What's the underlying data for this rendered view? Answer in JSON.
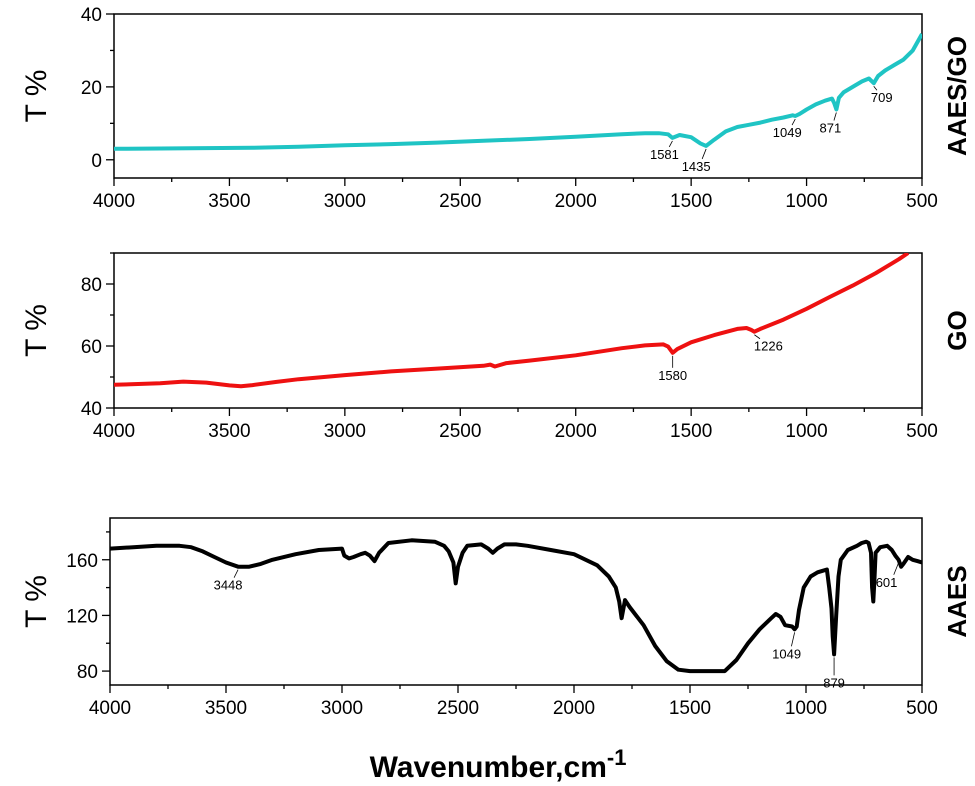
{
  "figure": {
    "xlabel": "Wavenumber,cm",
    "xlabel_sup": "-1"
  },
  "chart_data": [
    {
      "type": "line",
      "side_label": "AAES/GO",
      "ylabel": "T %",
      "color": "#1fc4c4",
      "xlim": [
        4000,
        500
      ],
      "ylim": [
        -5,
        40
      ],
      "x_ticks": [
        "4000",
        "3500",
        "3000",
        "2500",
        "2000",
        "1500",
        "1000",
        "500"
      ],
      "y_ticks": [
        "0",
        "20",
        "40"
      ],
      "series": [
        {
          "x": [
            4000,
            3800,
            3600,
            3400,
            3200,
            3000,
            2800,
            2600,
            2400,
            2200,
            2000,
            1800,
            1700,
            1640,
            1600,
            1581,
            1550,
            1500,
            1460,
            1435,
            1400,
            1350,
            1300,
            1250,
            1200,
            1150,
            1100,
            1060,
            1049,
            1030,
            1000,
            960,
            920,
            890,
            880,
            871,
            860,
            840,
            800,
            760,
            730,
            709,
            690,
            660,
            620,
            580,
            540,
            500
          ],
          "y": [
            3,
            3.1,
            3.2,
            3.3,
            3.6,
            4,
            4.3,
            4.7,
            5.2,
            5.7,
            6.3,
            7,
            7.3,
            7.3,
            7,
            6,
            6.8,
            6.2,
            4.5,
            3.8,
            5.5,
            7.8,
            9,
            9.6,
            10.2,
            11,
            11.6,
            12.2,
            12,
            12.6,
            13.8,
            15.2,
            16.2,
            16.8,
            15.5,
            13.8,
            17,
            18.5,
            20,
            21.5,
            22.3,
            21,
            23,
            24.5,
            26,
            27.5,
            30,
            34.5
          ]
        }
      ],
      "annotations": [
        {
          "label": "1581",
          "x": 1581,
          "y": 6
        },
        {
          "label": "1435",
          "x": 1435,
          "y": 3.8
        },
        {
          "label": "1049",
          "x": 1049,
          "y": 12
        },
        {
          "label": "871",
          "x": 871,
          "y": 13.8
        },
        {
          "label": "709",
          "x": 709,
          "y": 21
        }
      ]
    },
    {
      "type": "line",
      "side_label": "GO",
      "ylabel": "T %",
      "color": "#ee1111",
      "xlim": [
        4000,
        500
      ],
      "ylim": [
        40,
        90
      ],
      "x_ticks": [
        "4000",
        "3500",
        "3000",
        "2500",
        "2000",
        "1500",
        "1000",
        "500"
      ],
      "y_ticks": [
        "40",
        "60",
        "80"
      ],
      "series": [
        {
          "x": [
            4000,
            3800,
            3700,
            3600,
            3500,
            3450,
            3400,
            3300,
            3200,
            3000,
            2800,
            2600,
            2400,
            2370,
            2350,
            2300,
            2200,
            2000,
            1800,
            1700,
            1620,
            1600,
            1580,
            1560,
            1500,
            1400,
            1300,
            1260,
            1240,
            1226,
            1200,
            1100,
            1000,
            900,
            800,
            700,
            600,
            560
          ],
          "y": [
            47.5,
            48,
            48.5,
            48.2,
            47.3,
            47,
            47.4,
            48.4,
            49.3,
            50.6,
            51.8,
            52.7,
            53.6,
            54,
            53.4,
            54.5,
            55.3,
            57,
            59.3,
            60.2,
            60.5,
            59.8,
            57.8,
            59,
            61.2,
            63.5,
            65.5,
            65.8,
            65.2,
            64.6,
            65.5,
            68.5,
            72,
            75.8,
            79.5,
            83.5,
            88,
            90
          ]
        }
      ],
      "annotations": [
        {
          "label": "1580",
          "x": 1580,
          "y": 57.8
        },
        {
          "label": "1226",
          "x": 1226,
          "y": 64.6
        }
      ]
    },
    {
      "type": "line",
      "side_label": "AAES",
      "ylabel": "T %",
      "color": "#000000",
      "xlim": [
        4000,
        500
      ],
      "ylim": [
        70,
        190
      ],
      "x_ticks": [
        "4000",
        "3500",
        "3000",
        "2500",
        "2000",
        "1500",
        "1000",
        "500"
      ],
      "y_ticks": [
        "80",
        "120",
        "160"
      ],
      "series": [
        {
          "x": [
            4000,
            3900,
            3800,
            3700,
            3650,
            3600,
            3550,
            3500,
            3448,
            3400,
            3350,
            3300,
            3200,
            3100,
            3000,
            2990,
            2970,
            2950,
            2920,
            2900,
            2880,
            2860,
            2840,
            2800,
            2700,
            2600,
            2560,
            2540,
            2520,
            2510,
            2500,
            2480,
            2460,
            2400,
            2370,
            2350,
            2330,
            2300,
            2250,
            2200,
            2100,
            2000,
            1900,
            1850,
            1820,
            1805,
            1795,
            1780,
            1760,
            1700,
            1650,
            1600,
            1550,
            1500,
            1450,
            1400,
            1350,
            1300,
            1250,
            1200,
            1150,
            1130,
            1110,
            1090,
            1060,
            1049,
            1040,
            1030,
            1010,
            980,
            950,
            930,
            910,
            900,
            890,
            885,
            879,
            870,
            860,
            850,
            820,
            780,
            760,
            740,
            730,
            720,
            715,
            710,
            705,
            700,
            680,
            650,
            630,
            615,
            601,
            590,
            580,
            560,
            540,
            520,
            500
          ],
          "y": [
            168,
            169,
            170,
            170,
            169,
            166,
            162,
            158,
            155,
            155,
            157,
            160,
            164,
            167,
            168,
            163,
            161,
            162,
            164,
            165,
            163,
            159,
            165,
            172,
            174,
            173,
            170,
            166,
            158,
            143,
            155,
            165,
            170,
            171,
            168,
            165,
            168,
            171,
            171,
            170,
            167,
            164,
            156,
            148,
            140,
            130,
            118,
            131,
            126,
            113,
            98,
            87,
            81,
            80,
            80,
            80,
            80,
            88,
            100,
            110,
            118,
            121,
            119,
            113,
            112,
            110,
            112,
            124,
            140,
            148,
            151,
            152,
            153,
            140,
            125,
            105,
            92,
            120,
            148,
            160,
            167,
            170,
            172,
            173,
            172,
            165,
            140,
            130,
            145,
            165,
            169,
            170,
            167,
            163,
            160,
            155,
            157,
            162,
            160,
            159,
            158
          ]
        }
      ],
      "annotations": [
        {
          "label": "3448",
          "x": 3448,
          "y": 155
        },
        {
          "label": "1049",
          "x": 1049,
          "y": 110
        },
        {
          "label": "879",
          "x": 879,
          "y": 92
        },
        {
          "label": "601",
          "x": 601,
          "y": 160
        }
      ]
    }
  ]
}
